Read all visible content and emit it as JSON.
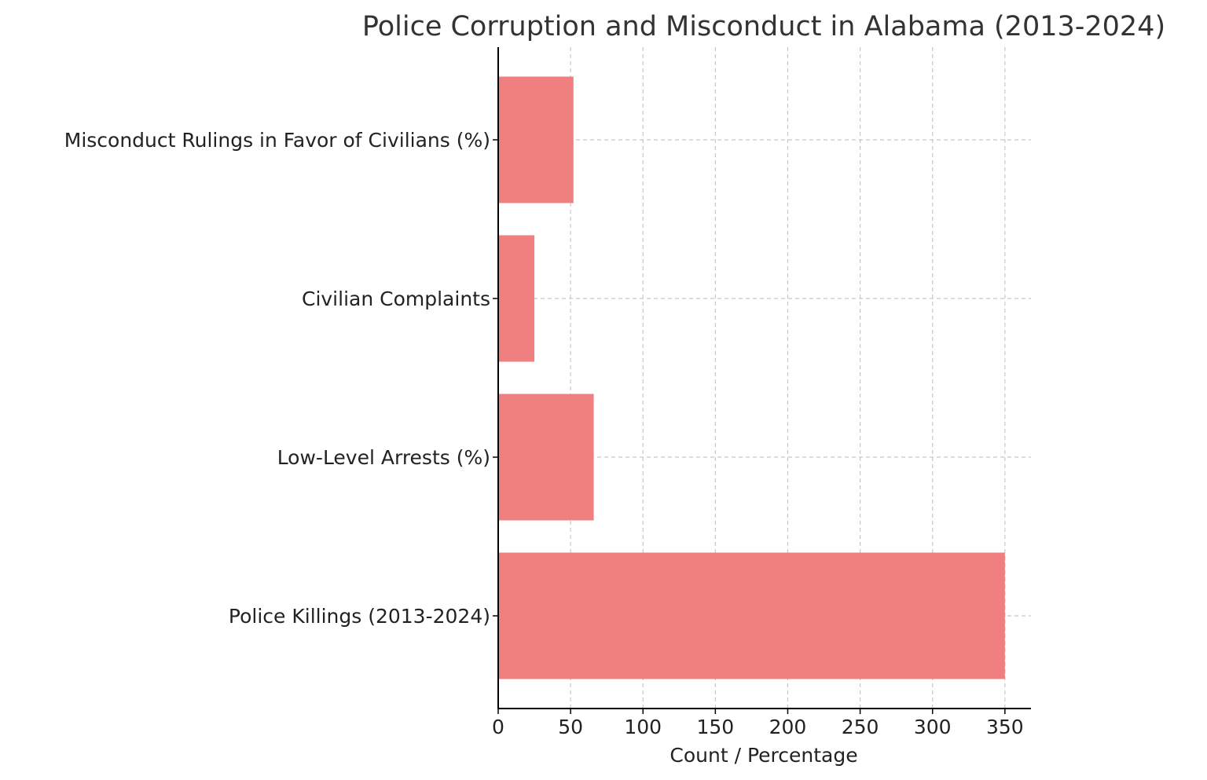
{
  "chart_data": {
    "type": "bar",
    "orientation": "horizontal",
    "title": "Police Corruption and Misconduct in Alabama (2013-2024)",
    "xlabel": "Count / Percentage",
    "ylabel": "",
    "categories": [
      "Police Killings (2013-2024)",
      "Low-Level Arrests (%)",
      "Civilian Complaints",
      "Misconduct Rulings in Favor of Civilians (%)"
    ],
    "values": [
      350,
      66,
      25,
      52
    ],
    "xlim": [
      0,
      368
    ],
    "xticks": [
      0,
      50,
      100,
      150,
      200,
      250,
      300,
      350
    ],
    "xtick_labels": [
      "0",
      "50",
      "100",
      "150",
      "200",
      "250",
      "300",
      "350"
    ],
    "grid": true,
    "bar_color": "#f08080"
  }
}
